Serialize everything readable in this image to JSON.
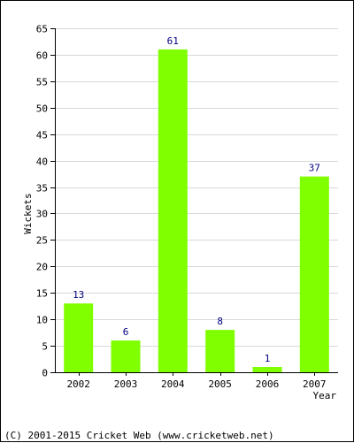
{
  "chart_data": {
    "type": "bar",
    "categories": [
      "2002",
      "2003",
      "2004",
      "2005",
      "2006",
      "2007"
    ],
    "values": [
      13,
      6,
      61,
      8,
      1,
      37
    ],
    "title": "",
    "xlabel": "Year",
    "ylabel": "Wickets",
    "ylim": [
      0,
      65
    ],
    "yticks": [
      0,
      5,
      10,
      15,
      20,
      25,
      30,
      35,
      40,
      45,
      50,
      55,
      60,
      65
    ],
    "grid": true,
    "bar_color": "#80ff00",
    "label_color": "#000080"
  },
  "footer": {
    "copyright": "(C) 2001-2015 Cricket Web (www.cricketweb.net)"
  }
}
